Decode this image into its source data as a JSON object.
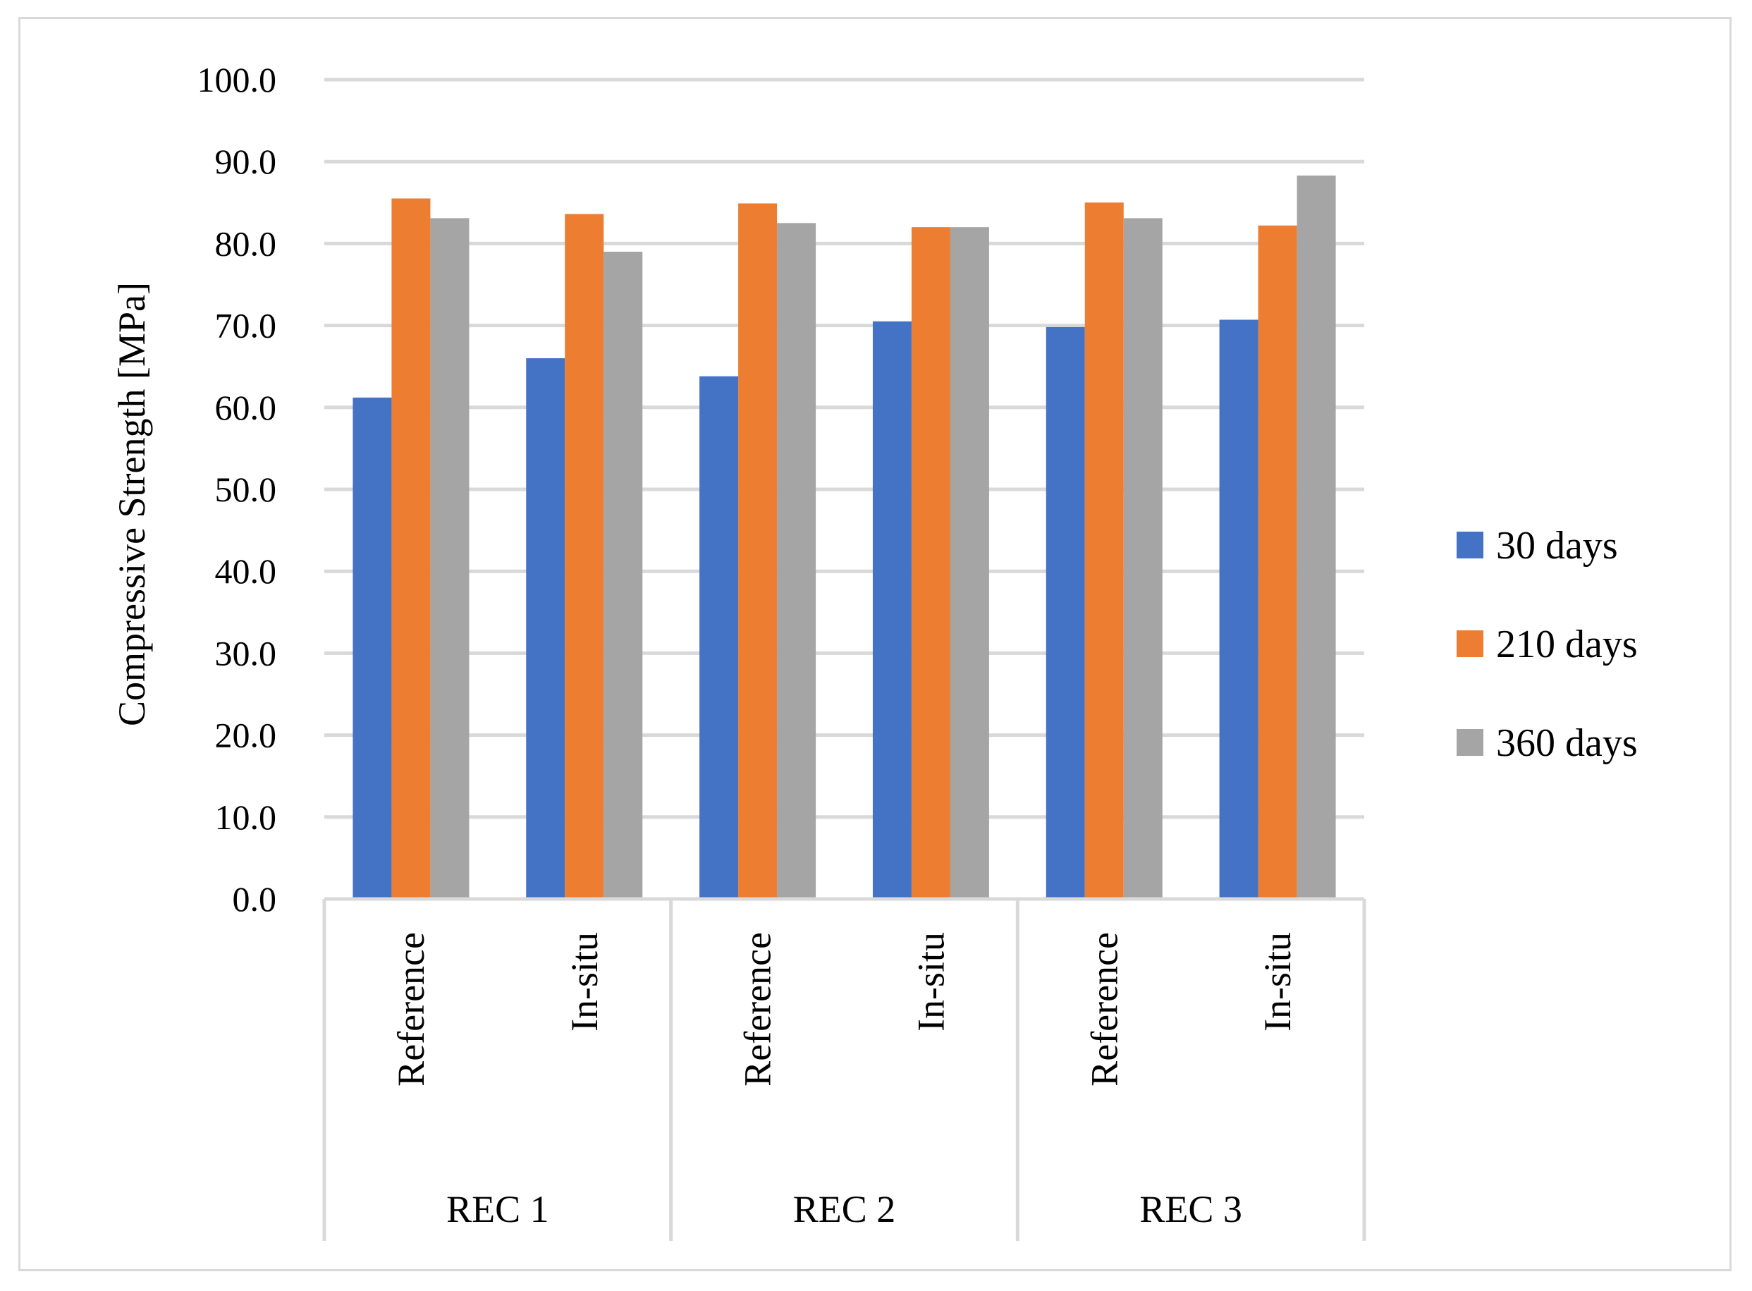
{
  "chart_data": {
    "type": "bar",
    "title": "",
    "xlabel": "",
    "ylabel": "Compressive Strength [MPa]",
    "ylim": [
      0,
      100
    ],
    "ytick_step": 10,
    "ytick_labels": [
      "0.0",
      "10.0",
      "20.0",
      "30.0",
      "40.0",
      "50.0",
      "60.0",
      "70.0",
      "80.0",
      "90.0",
      "100.0"
    ],
    "grid": true,
    "legend_position": "right",
    "groups": [
      {
        "label": "REC 1",
        "subcategories": [
          "Reference",
          "In-situ"
        ]
      },
      {
        "label": "REC 2",
        "subcategories": [
          "Reference",
          "In-situ"
        ]
      },
      {
        "label": "REC 3",
        "subcategories": [
          "Reference",
          "In-situ"
        ]
      }
    ],
    "categories": [
      "REC 1 Reference",
      "REC 1 In-situ",
      "REC 2 Reference",
      "REC 2 In-situ",
      "REC 3 Reference",
      "REC 3 In-situ"
    ],
    "series": [
      {
        "name": "30 days",
        "color": "#4472c4",
        "values": [
          61.2,
          66.0,
          63.8,
          70.5,
          69.8,
          70.7
        ]
      },
      {
        "name": "210 days",
        "color": "#ed7d31",
        "values": [
          85.5,
          83.6,
          84.9,
          82.0,
          85.0,
          82.2
        ]
      },
      {
        "name": "360 days",
        "color": "#a5a5a5",
        "values": [
          83.1,
          79.0,
          82.5,
          82.0,
          83.1,
          88.3
        ]
      }
    ]
  },
  "colors": {
    "gridline": "#d9d9d9",
    "axis": "#d9d9d9",
    "frame": "#d9d9d9"
  }
}
